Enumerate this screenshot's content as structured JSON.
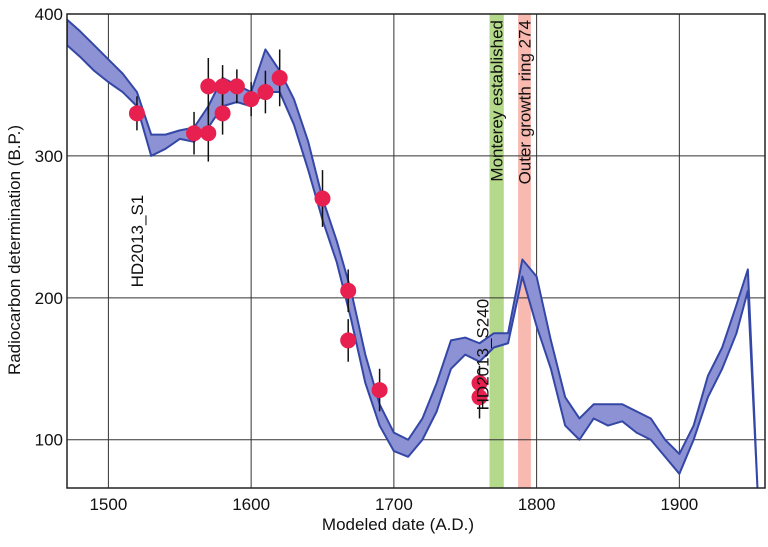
{
  "chart_data": {
    "type": "scatter",
    "xlabel": "Modeled date (A.D.)",
    "ylabel": "Radiocarbon determination (B.P.)",
    "xlim": [
      1471,
      1960
    ],
    "ylim": [
      66,
      400
    ],
    "xticks": [
      1500,
      1600,
      1700,
      1800,
      1900
    ],
    "yticks": [
      100,
      200,
      300,
      400
    ],
    "grid": true,
    "curve": {
      "color": "#8d92d4",
      "line_color": "#3447a6",
      "x": [
        1471,
        1480,
        1490,
        1500,
        1510,
        1520,
        1530,
        1540,
        1550,
        1560,
        1570,
        1580,
        1590,
        1600,
        1610,
        1620,
        1630,
        1640,
        1650,
        1660,
        1670,
        1680,
        1690,
        1700,
        1710,
        1720,
        1730,
        1740,
        1750,
        1760,
        1770,
        1780,
        1790,
        1800,
        1810,
        1820,
        1830,
        1840,
        1850,
        1860,
        1870,
        1880,
        1890,
        1900,
        1910,
        1920,
        1930,
        1940,
        1948,
        1955
      ],
      "upper": [
        396,
        388,
        378,
        368,
        358,
        345,
        315,
        315,
        318,
        320,
        335,
        355,
        350,
        345,
        375,
        360,
        340,
        310,
        270,
        240,
        205,
        160,
        125,
        105,
        100,
        115,
        140,
        170,
        172,
        168,
        175,
        175,
        227,
        215,
        170,
        130,
        115,
        125,
        125,
        125,
        120,
        115,
        100,
        90,
        110,
        145,
        165,
        195,
        220,
        60
      ],
      "lower": [
        378,
        370,
        360,
        352,
        345,
        335,
        300,
        305,
        312,
        310,
        320,
        335,
        338,
        335,
        345,
        345,
        322,
        290,
        255,
        225,
        185,
        140,
        110,
        92,
        88,
        100,
        120,
        150,
        160,
        155,
        165,
        168,
        215,
        180,
        150,
        110,
        100,
        115,
        110,
        113,
        105,
        100,
        88,
        76,
        100,
        130,
        150,
        175,
        205,
        60
      ]
    },
    "points": {
      "color": "#e8204f",
      "x": [
        1520,
        1560,
        1570,
        1570,
        1580,
        1580,
        1590,
        1600,
        1610,
        1620,
        1650,
        1668,
        1668,
        1690,
        1760,
        1760
      ],
      "y": [
        330,
        316,
        316,
        349,
        349,
        330,
        349,
        340,
        345,
        355,
        270,
        205,
        170,
        135,
        140,
        130
      ],
      "errors": [
        12,
        15,
        20,
        20,
        15,
        15,
        12,
        12,
        15,
        20,
        20,
        15,
        15,
        15,
        12,
        15
      ]
    },
    "spans": [
      {
        "text": "Monterey established",
        "x": [
          1767,
          1777
        ],
        "color": "#b5d98a"
      },
      {
        "text": "Outer growth ring  274",
        "x": [
          1787,
          1796
        ],
        "color": "#f7b9b0"
      }
    ],
    "annotations": [
      {
        "text": "HD2013_S1",
        "x": 1520,
        "y": 240
      },
      {
        "text": "HD2013_S240",
        "x": 1762,
        "y": 160
      }
    ]
  }
}
